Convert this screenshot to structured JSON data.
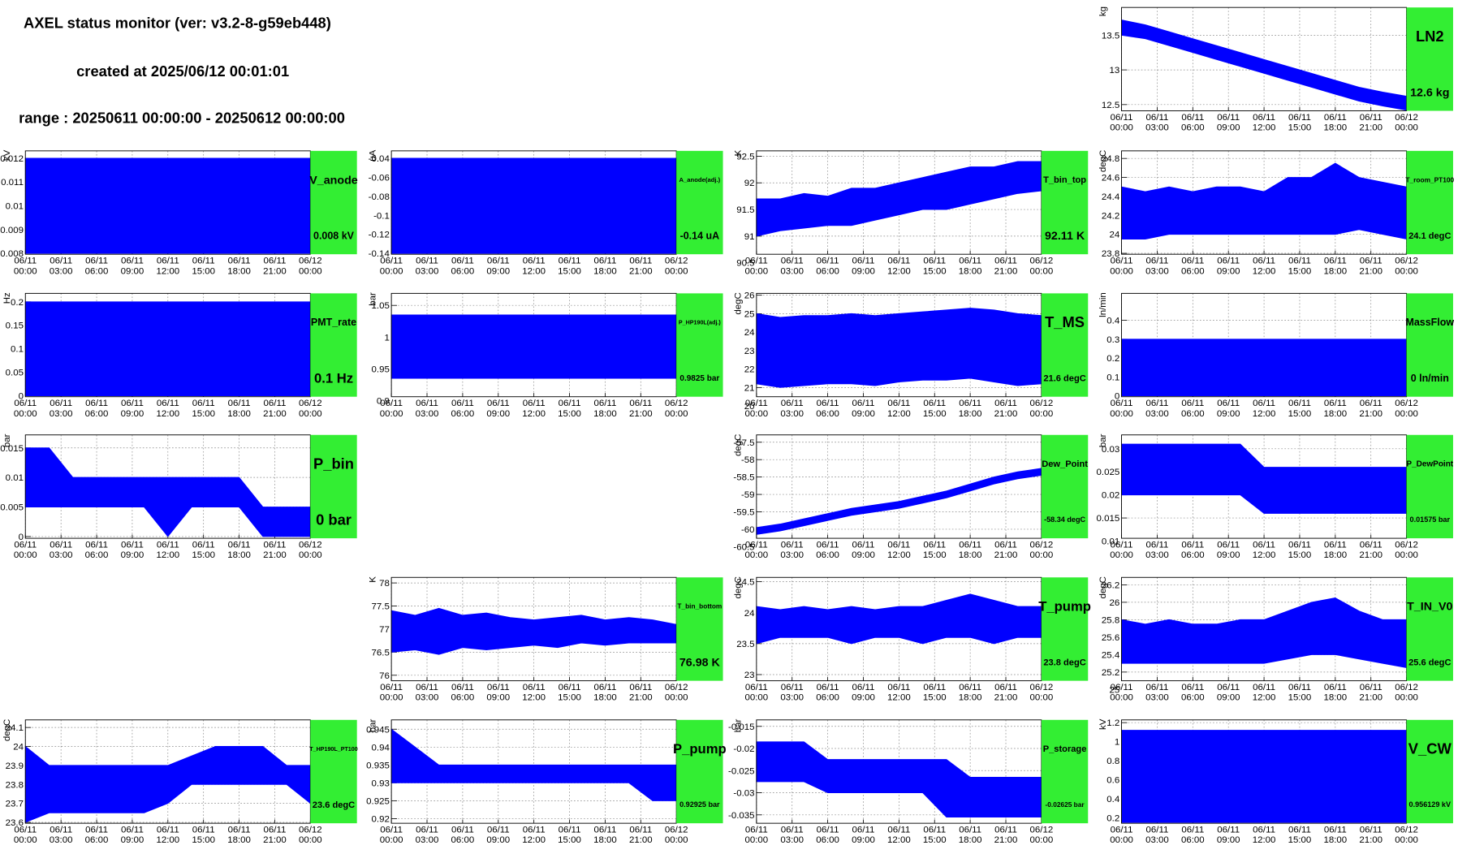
{
  "header": {
    "title": "AXEL status monitor (ver: v3.2-8-g59eb448)",
    "created": "created at 2025/06/12 00:01:01",
    "range": "range : 20250611 00:00:00 - 20250612 00:00:00"
  },
  "time_axis": {
    "x": [
      0,
      2,
      4,
      6,
      8,
      10,
      12,
      14,
      16,
      18,
      20,
      22,
      24
    ],
    "xlim": [
      0,
      24
    ],
    "xticks": [
      {
        "value": 0,
        "label": "06/11 00:00"
      },
      {
        "value": 3,
        "label": "06/11 03:00"
      },
      {
        "value": 6,
        "label": "06/11 06:00"
      },
      {
        "value": 9,
        "label": "06/11 09:00"
      },
      {
        "value": 12,
        "label": "06/11 12:00"
      },
      {
        "value": 15,
        "label": "06/11 15:00"
      },
      {
        "value": 18,
        "label": "06/11 18:00"
      },
      {
        "value": 21,
        "label": "06/11 21:00"
      },
      {
        "value": 24,
        "label": "06/12 00:00"
      }
    ]
  },
  "chart_data": [
    {
      "type": "band",
      "title": "LN2",
      "reading": "12.6 kg",
      "ylabel": "kg",
      "color": "#0000ff",
      "ylim": [
        12.41,
        13.9
      ],
      "yticks": [
        12.5,
        13,
        13.5
      ],
      "grid": true,
      "low": [
        13.5,
        13.45,
        13.35,
        13.25,
        13.15,
        13.05,
        12.95,
        12.85,
        12.75,
        12.65,
        12.55,
        12.48,
        12.42
      ],
      "high": [
        13.72,
        13.65,
        13.55,
        13.45,
        13.35,
        13.25,
        13.15,
        13.05,
        12.95,
        12.85,
        12.75,
        12.68,
        12.62
      ]
    },
    {
      "type": "band",
      "title": "V_anode",
      "reading": "0.008 kV",
      "ylabel": "kV",
      "color": "#0000ff",
      "ylim": [
        0.00796,
        0.01231
      ],
      "yticks": [
        0.008,
        0.009,
        0.01,
        0.011,
        0.012
      ],
      "grid": true,
      "low": [
        0.008,
        0.008,
        0.008,
        0.008,
        0.008,
        0.008,
        0.008,
        0.008,
        0.008,
        0.008,
        0.008,
        0.008,
        0.008
      ],
      "high": [
        0.012,
        0.012,
        0.012,
        0.012,
        0.012,
        0.012,
        0.012,
        0.012,
        0.012,
        0.012,
        0.012,
        0.012,
        0.012
      ]
    },
    {
      "type": "band",
      "title": "A_anode(adj.)",
      "reading": "-0.14 uA",
      "ylabel": "uA",
      "color": "#0000ff",
      "ylim": [
        -0.1409,
        -0.0322
      ],
      "yticks": [
        -0.14,
        -0.12,
        -0.1,
        -0.08,
        -0.06,
        -0.04
      ],
      "grid": true,
      "low": [
        -0.14,
        -0.14,
        -0.14,
        -0.14,
        -0.14,
        -0.14,
        -0.14,
        -0.14,
        -0.14,
        -0.14,
        -0.14,
        -0.14,
        -0.14
      ],
      "high": [
        -0.04,
        -0.04,
        -0.04,
        -0.04,
        -0.04,
        -0.04,
        -0.04,
        -0.04,
        -0.04,
        -0.04,
        -0.04,
        -0.04,
        -0.04
      ]
    },
    {
      "type": "band",
      "title": "T_bin_top",
      "reading": "92.11 K",
      "ylabel": "K",
      "color": "#0000ff",
      "ylim": [
        90.66,
        92.6
      ],
      "yticks": [
        90.5,
        91,
        91.5,
        92,
        92.5
      ],
      "grid": true,
      "low": [
        91.0,
        91.1,
        91.15,
        91.2,
        91.2,
        91.3,
        91.4,
        91.5,
        91.5,
        91.6,
        91.7,
        91.8,
        91.85
      ],
      "high": [
        91.7,
        91.7,
        91.8,
        91.75,
        91.9,
        91.9,
        92.0,
        92.1,
        92.2,
        92.3,
        92.3,
        92.4,
        92.4
      ]
    },
    {
      "type": "band",
      "title": "T_room_PT100",
      "reading": "24.1 degC",
      "ylabel": "degC",
      "color": "#0000ff",
      "ylim": [
        23.79,
        24.88
      ],
      "yticks": [
        23.8,
        24,
        24.2,
        24.4,
        24.6,
        24.8
      ],
      "grid": true,
      "low": [
        23.95,
        23.95,
        24.0,
        24.0,
        24.0,
        24.0,
        24.0,
        24.0,
        24.0,
        24.0,
        24.05,
        24.0,
        23.95
      ],
      "high": [
        24.5,
        24.45,
        24.5,
        24.45,
        24.5,
        24.5,
        24.45,
        24.6,
        24.6,
        24.75,
        24.6,
        24.55,
        24.5
      ]
    },
    {
      "type": "band",
      "title": "PMT_rate",
      "reading": "0.1 Hz",
      "ylabel": "Hz",
      "color": "#0000ff",
      "ylim": [
        -0.002,
        0.218
      ],
      "yticks": [
        0,
        0.05,
        0.1,
        0.15,
        0.2
      ],
      "grid": true,
      "low": [
        0,
        0,
        0,
        0,
        0,
        0,
        0,
        0,
        0,
        0,
        0,
        0,
        0
      ],
      "high": [
        0.2,
        0.2,
        0.2,
        0.2,
        0.2,
        0.2,
        0.2,
        0.2,
        0.2,
        0.2,
        0.2,
        0.2,
        0.2
      ]
    },
    {
      "type": "band",
      "title": "P_HP190L(adj.)",
      "reading": "0.9825 bar",
      "ylabel": "bar",
      "color": "#0000ff",
      "ylim": [
        0.906,
        1.069
      ],
      "yticks": [
        0.9,
        0.95,
        1,
        1.05
      ],
      "grid": true,
      "low": [
        0.935,
        0.935,
        0.935,
        0.935,
        0.935,
        0.935,
        0.935,
        0.935,
        0.935,
        0.935,
        0.935,
        0.935,
        0.935
      ],
      "high": [
        1.035,
        1.035,
        1.035,
        1.035,
        1.035,
        1.035,
        1.035,
        1.035,
        1.035,
        1.035,
        1.035,
        1.035,
        1.035
      ]
    },
    {
      "type": "band",
      "title": "T_MS",
      "reading": "21.6 degC",
      "ylabel": "degC",
      "color": "#0000ff",
      "ylim": [
        20.5,
        26.1
      ],
      "yticks": [
        20,
        21,
        22,
        23,
        24,
        25,
        26
      ],
      "grid": true,
      "low": [
        21.2,
        21.0,
        21.1,
        21.2,
        21.2,
        21.1,
        21.3,
        21.4,
        21.4,
        21.5,
        21.3,
        21.1,
        21.2
      ],
      "high": [
        25.0,
        24.8,
        24.9,
        24.9,
        25.0,
        24.9,
        25.0,
        25.1,
        25.2,
        25.3,
        25.2,
        25.0,
        24.9
      ]
    },
    {
      "type": "band",
      "title": "MassFlow",
      "reading": "0 ln/min",
      "ylabel": "ln/min",
      "color": "#0000ff",
      "ylim": [
        -0.005,
        0.543
      ],
      "yticks": [
        0,
        0.1,
        0.2,
        0.3,
        0.4
      ],
      "grid": true,
      "low": [
        0,
        0,
        0,
        0,
        0,
        0,
        0,
        0,
        0,
        0,
        0,
        0,
        0
      ],
      "high": [
        0.3,
        0.3,
        0.3,
        0.3,
        0.3,
        0.3,
        0.3,
        0.3,
        0.3,
        0.3,
        0.3,
        0.3,
        0.3
      ]
    },
    {
      "type": "band",
      "title": "P_bin",
      "reading": "0 bar",
      "ylabel": "bar",
      "color": "#0000ff",
      "ylim": [
        -0.0003,
        0.0172
      ],
      "yticks": [
        0,
        0.005,
        0.01,
        0.015
      ],
      "grid": true,
      "low": [
        0.005,
        0.005,
        0.005,
        0.005,
        0.005,
        0.005,
        0.0,
        0.005,
        0.005,
        0.005,
        0.0,
        0.0,
        0.0
      ],
      "high": [
        0.015,
        0.015,
        0.01,
        0.01,
        0.01,
        0.01,
        0.01,
        0.01,
        0.01,
        0.01,
        0.005,
        0.005,
        0.005
      ]
    },
    {
      "type": "band",
      "title": "Dew_Point",
      "reading": "-58.34 degC",
      "ylabel": "degC",
      "color": "#0000ff",
      "ylim": [
        -60.26,
        -57.29
      ],
      "yticks": [
        -60.5,
        -60,
        -59.5,
        -59,
        -58.5,
        -58,
        -57.5
      ],
      "grid": true,
      "low": [
        -60.15,
        -60.05,
        -59.9,
        -59.75,
        -59.6,
        -59.5,
        -59.4,
        -59.25,
        -59.1,
        -58.9,
        -58.7,
        -58.55,
        -58.45
      ],
      "high": [
        -59.95,
        -59.85,
        -59.7,
        -59.55,
        -59.4,
        -59.3,
        -59.2,
        -59.05,
        -58.9,
        -58.7,
        -58.5,
        -58.35,
        -58.25
      ]
    },
    {
      "type": "band",
      "title": "P_DewPoint",
      "reading": "0.01575 bar",
      "ylabel": "bar",
      "color": "#0000ff",
      "ylim": [
        0.0106,
        0.033
      ],
      "yticks": [
        0.01,
        0.015,
        0.02,
        0.025,
        0.03
      ],
      "grid": true,
      "low": [
        0.02,
        0.02,
        0.02,
        0.02,
        0.02,
        0.02,
        0.016,
        0.016,
        0.016,
        0.016,
        0.016,
        0.016,
        0.016
      ],
      "high": [
        0.031,
        0.031,
        0.031,
        0.031,
        0.031,
        0.031,
        0.026,
        0.026,
        0.026,
        0.026,
        0.026,
        0.026,
        0.026
      ]
    },
    {
      "type": "band",
      "title": "T_bin_bottom",
      "reading": "76.98 K",
      "ylabel": "K",
      "color": "#0000ff",
      "ylim": [
        75.88,
        78.12
      ],
      "yticks": [
        76,
        76.5,
        77,
        77.5,
        78
      ],
      "grid": true,
      "low": [
        76.5,
        76.55,
        76.45,
        76.6,
        76.55,
        76.6,
        76.65,
        76.6,
        76.7,
        76.65,
        76.7,
        76.7,
        76.7
      ],
      "high": [
        77.4,
        77.3,
        77.45,
        77.3,
        77.35,
        77.25,
        77.2,
        77.25,
        77.3,
        77.2,
        77.25,
        77.2,
        77.1
      ]
    },
    {
      "type": "band",
      "title": "T_pump",
      "reading": "23.8 degC",
      "ylabel": "degC",
      "color": "#0000ff",
      "ylim": [
        22.9,
        24.57
      ],
      "yticks": [
        23,
        23.5,
        24,
        24.5
      ],
      "grid": true,
      "low": [
        23.5,
        23.6,
        23.6,
        23.6,
        23.5,
        23.6,
        23.6,
        23.5,
        23.6,
        23.6,
        23.5,
        23.6,
        23.6
      ],
      "high": [
        24.1,
        24.05,
        24.1,
        24.05,
        24.1,
        24.05,
        24.1,
        24.1,
        24.2,
        24.3,
        24.2,
        24.1,
        24.1
      ]
    },
    {
      "type": "band",
      "title": "T_IN_V0",
      "reading": "25.6 degC",
      "ylabel": "degC",
      "color": "#0000ff",
      "ylim": [
        25.1,
        26.285
      ],
      "yticks": [
        25,
        25.2,
        25.4,
        25.6,
        25.8,
        26,
        26.2
      ],
      "grid": true,
      "low": [
        25.3,
        25.3,
        25.3,
        25.3,
        25.3,
        25.3,
        25.3,
        25.35,
        25.4,
        25.4,
        25.35,
        25.3,
        25.25
      ],
      "high": [
        25.8,
        25.75,
        25.8,
        25.75,
        25.75,
        25.8,
        25.8,
        25.9,
        26.0,
        26.05,
        25.9,
        25.8,
        25.8
      ]
    },
    {
      "type": "band",
      "title": "T_HP190L_PT100",
      "reading": "23.6 degC",
      "ylabel": "degC",
      "color": "#0000ff",
      "ylim": [
        23.595,
        24.14
      ],
      "yticks": [
        23.6,
        23.7,
        23.8,
        23.9,
        24,
        24.1
      ],
      "grid": true,
      "low": [
        23.6,
        23.65,
        23.65,
        23.65,
        23.65,
        23.65,
        23.7,
        23.8,
        23.8,
        23.8,
        23.8,
        23.8,
        23.7
      ],
      "high": [
        24.0,
        23.9,
        23.9,
        23.9,
        23.9,
        23.9,
        23.9,
        23.95,
        24.0,
        24.0,
        24.0,
        23.9,
        23.9
      ]
    },
    {
      "type": "band",
      "title": "P_pump",
      "reading": "0.92925 bar",
      "ylabel": "bar",
      "color": "#0000ff",
      "ylim": [
        0.9187,
        0.9476
      ],
      "yticks": [
        0.92,
        0.925,
        0.93,
        0.935,
        0.94,
        0.945
      ],
      "grid": true,
      "low": [
        0.93,
        0.93,
        0.93,
        0.93,
        0.93,
        0.93,
        0.93,
        0.93,
        0.93,
        0.93,
        0.93,
        0.925,
        0.925
      ],
      "high": [
        0.945,
        0.94,
        0.935,
        0.935,
        0.935,
        0.935,
        0.935,
        0.935,
        0.935,
        0.935,
        0.935,
        0.935,
        0.935
      ]
    },
    {
      "type": "band",
      "title": "P_storage",
      "reading": "-0.02625 bar",
      "ylabel": "bar",
      "color": "#0000ff",
      "ylim": [
        -0.0369,
        -0.01354
      ],
      "yticks": [
        -0.035,
        -0.03,
        -0.025,
        -0.02,
        -0.015
      ],
      "grid": true,
      "low": [
        -0.0275,
        -0.0275,
        -0.0275,
        -0.03,
        -0.03,
        -0.03,
        -0.03,
        -0.03,
        -0.0355,
        -0.0355,
        -0.0355,
        -0.0355,
        -0.0355
      ],
      "high": [
        -0.0185,
        -0.0185,
        -0.0185,
        -0.0225,
        -0.0225,
        -0.0225,
        -0.0225,
        -0.0225,
        -0.0225,
        -0.0265,
        -0.0265,
        -0.0265,
        -0.0265
      ]
    },
    {
      "type": "band",
      "title": "V_CW",
      "reading": "0.956129 kV",
      "ylabel": "kV",
      "color": "#0000ff",
      "ylim": [
        0.141,
        1.229
      ],
      "yticks": [
        0.2,
        0.4,
        0.6,
        0.8,
        1,
        1.2
      ],
      "grid": true,
      "low": [
        0.15,
        0.15,
        0.15,
        0.15,
        0.15,
        0.15,
        0.15,
        0.15,
        0.15,
        0.15,
        0.15,
        0.15,
        0.15
      ],
      "high": [
        1.12,
        1.12,
        1.12,
        1.12,
        1.12,
        1.12,
        1.12,
        1.12,
        1.12,
        1.12,
        1.12,
        1.12,
        1.12
      ]
    }
  ]
}
